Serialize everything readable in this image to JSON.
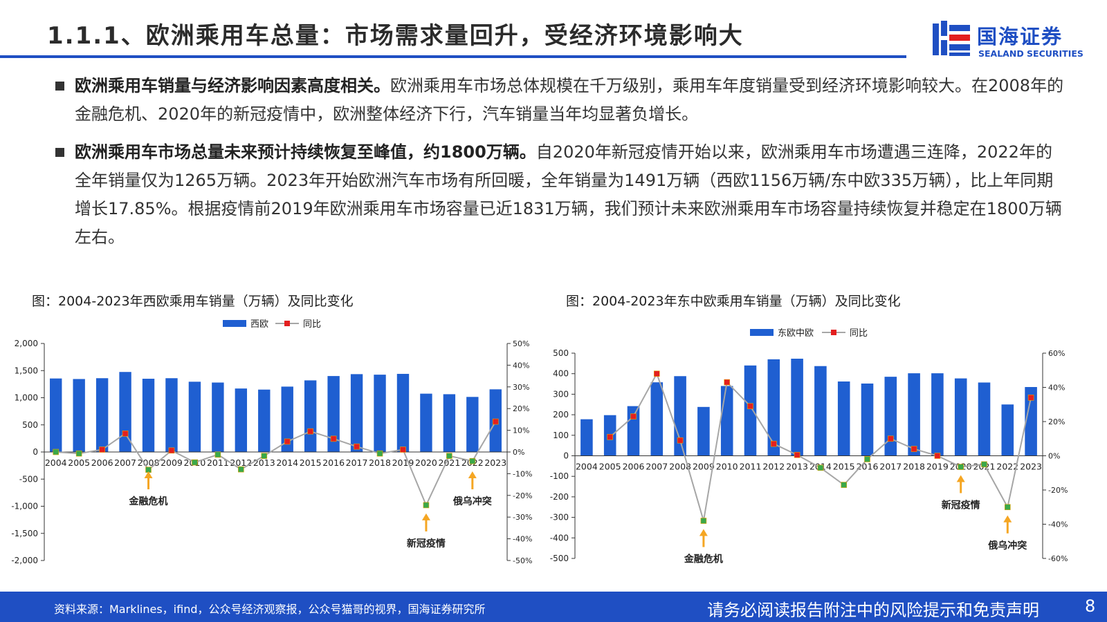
{
  "header": {
    "title": "1.1.1、欧洲乘用车总量：市场需求量回升，受经济环境影响大",
    "logo_cn": "国海证券",
    "logo_en": "SEALAND SECURITIES",
    "accent_color": "#1f4fc3"
  },
  "bullets": [
    {
      "bold": "欧洲乘用车销量与经济影响因素高度相关。",
      "text": "欧洲乘用车市场总体规模在千万级别，乘用车年度销量受到经济环境影响较大。在2008年的金融危机、2020年的新冠疫情中，欧洲整体经济下行，汽车销量当年均显著负增长。"
    },
    {
      "bold": "欧洲乘用车市场总量未来预计持续恢复至峰值，约1800万辆。",
      "text": "自2020年新冠疫情开始以来，欧洲乘用车市场遭遇三连降，2022年的全年销量仅为1265万辆。2023年开始欧洲汽车市场有所回暖，全年销量为1491万辆（西欧1156万辆/东中欧335万辆），比上年同期增长17.85%。根据疫情前2019年欧洲乘用车市场容量已近1831万辆，我们预计未来欧洲乘用车市场容量持续恢复并稳定在1800万辆左右。"
    }
  ],
  "chart_data": [
    {
      "type": "bar",
      "title": "图：2004-2023年西欧乘用车销量（万辆）及同比变化",
      "categories": [
        "2004",
        "2005",
        "2006",
        "2007",
        "2008",
        "2009",
        "2010",
        "2011",
        "2012",
        "2013",
        "2014",
        "2015",
        "2016",
        "2017",
        "2018",
        "2019",
        "2020",
        "2021",
        "2022",
        "2023"
      ],
      "series": [
        {
          "name": "西欧",
          "kind": "bar",
          "axis": "left",
          "color": "#1f5fd1",
          "values": [
            1355,
            1345,
            1360,
            1475,
            1350,
            1360,
            1295,
            1280,
            1170,
            1150,
            1205,
            1320,
            1400,
            1435,
            1425,
            1440,
            1075,
            1065,
            1015,
            1155
          ]
        },
        {
          "name": "同比",
          "kind": "line",
          "axis": "right",
          "color": "#a6a6a6",
          "values": [
            0,
            -0.7,
            1.1,
            8.5,
            -8.2,
            0.7,
            -4.8,
            -1.2,
            -8.0,
            -1.8,
            4.8,
            9.5,
            6.1,
            2.5,
            -0.7,
            1.1,
            -24.5,
            -1.8,
            -4.2,
            14.0
          ],
          "point_colors": [
            "#3aa84a",
            "#3aa84a",
            "#e31f1f",
            "#e31f1f",
            "#3aa84a",
            "#e31f1f",
            "#3aa84a",
            "#3aa84a",
            "#3aa84a",
            "#3aa84a",
            "#e31f1f",
            "#e31f1f",
            "#e31f1f",
            "#e31f1f",
            "#3aa84a",
            "#e31f1f",
            "#3aa84a",
            "#3aa84a",
            "#3aa84a",
            "#e31f1f"
          ]
        }
      ],
      "left_axis": {
        "min": -2000,
        "max": 2000,
        "step": 500,
        "ticks": [
          "2,000",
          "1,500",
          "1,000",
          "500",
          "0",
          "-500",
          "-1,000",
          "-1,500",
          "-2,000"
        ]
      },
      "right_axis": {
        "min": -50,
        "max": 50,
        "step": 10,
        "ticks": [
          "50%",
          "40%",
          "30%",
          "20%",
          "10%",
          "0%",
          "-10%",
          "-20%",
          "-30%",
          "-40%",
          "-50%"
        ]
      },
      "legend_position": "top-center",
      "annotations": [
        {
          "text": "金融危机",
          "category": "2008",
          "color": "#f5a623"
        },
        {
          "text": "新冠疫情",
          "category": "2020",
          "color": "#f5a623"
        },
        {
          "text": "俄乌冲突",
          "category": "2022",
          "color": "#f5a623"
        }
      ]
    },
    {
      "type": "bar",
      "title": "图：2004-2023年东中欧乘用车销量（万辆）及同比变化",
      "categories": [
        "2004",
        "2005",
        "2006",
        "2007",
        "2008",
        "2009",
        "2010",
        "2011",
        "2012",
        "2013",
        "2014",
        "2015",
        "2016",
        "2017",
        "2018",
        "2019",
        "2020",
        "2021",
        "2022",
        "2023"
      ],
      "series": [
        {
          "name": "东欧中欧",
          "kind": "bar",
          "axis": "left",
          "color": "#1f5fd1",
          "values": [
            178,
            198,
            242,
            358,
            388,
            238,
            340,
            440,
            470,
            473,
            437,
            362,
            352,
            385,
            402,
            402,
            377,
            357,
            250,
            335
          ]
        },
        {
          "name": "同比",
          "kind": "line",
          "axis": "right",
          "color": "#a6a6a6",
          "values": [
            null,
            11,
            23,
            48,
            9,
            -38,
            43,
            29,
            7,
            0.5,
            -7,
            -17,
            -2,
            10,
            4,
            0,
            -6.5,
            -5,
            -30,
            34
          ],
          "point_colors": [
            "#e31f1f",
            "#e31f1f",
            "#e31f1f",
            "#e31f1f",
            "#e31f1f",
            "#3aa84a",
            "#e31f1f",
            "#e31f1f",
            "#e31f1f",
            "#e31f1f",
            "#3aa84a",
            "#3aa84a",
            "#3aa84a",
            "#e31f1f",
            "#e31f1f",
            "#e31f1f",
            "#3aa84a",
            "#3aa84a",
            "#3aa84a",
            "#e31f1f"
          ]
        }
      ],
      "left_axis": {
        "min": -500,
        "max": 500,
        "step": 100,
        "ticks": [
          "500",
          "400",
          "300",
          "200",
          "100",
          "0",
          "-100",
          "-200",
          "-300",
          "-400",
          "-500"
        ]
      },
      "right_axis": {
        "min": -60,
        "max": 60,
        "step": 20,
        "ticks": [
          "60%",
          "40%",
          "20%",
          "0%",
          "-20%",
          "-40%",
          "-60%"
        ]
      },
      "legend_position": "top-center",
      "annotations": [
        {
          "text": "金融危机",
          "category": "2009",
          "color": "#f5a623"
        },
        {
          "text": "新冠疫情",
          "category": "2020",
          "color": "#f5a623"
        },
        {
          "text": "俄乌冲突",
          "category": "2022",
          "color": "#f5a623"
        }
      ]
    }
  ],
  "footer": {
    "source": "资料来源：Marklines，ifind，公众号经济观察报，公众号猫哥的视界，国海证券研究所",
    "disclaimer": "请务必阅读报告附注中的风险提示和免责声明",
    "page": "8"
  }
}
